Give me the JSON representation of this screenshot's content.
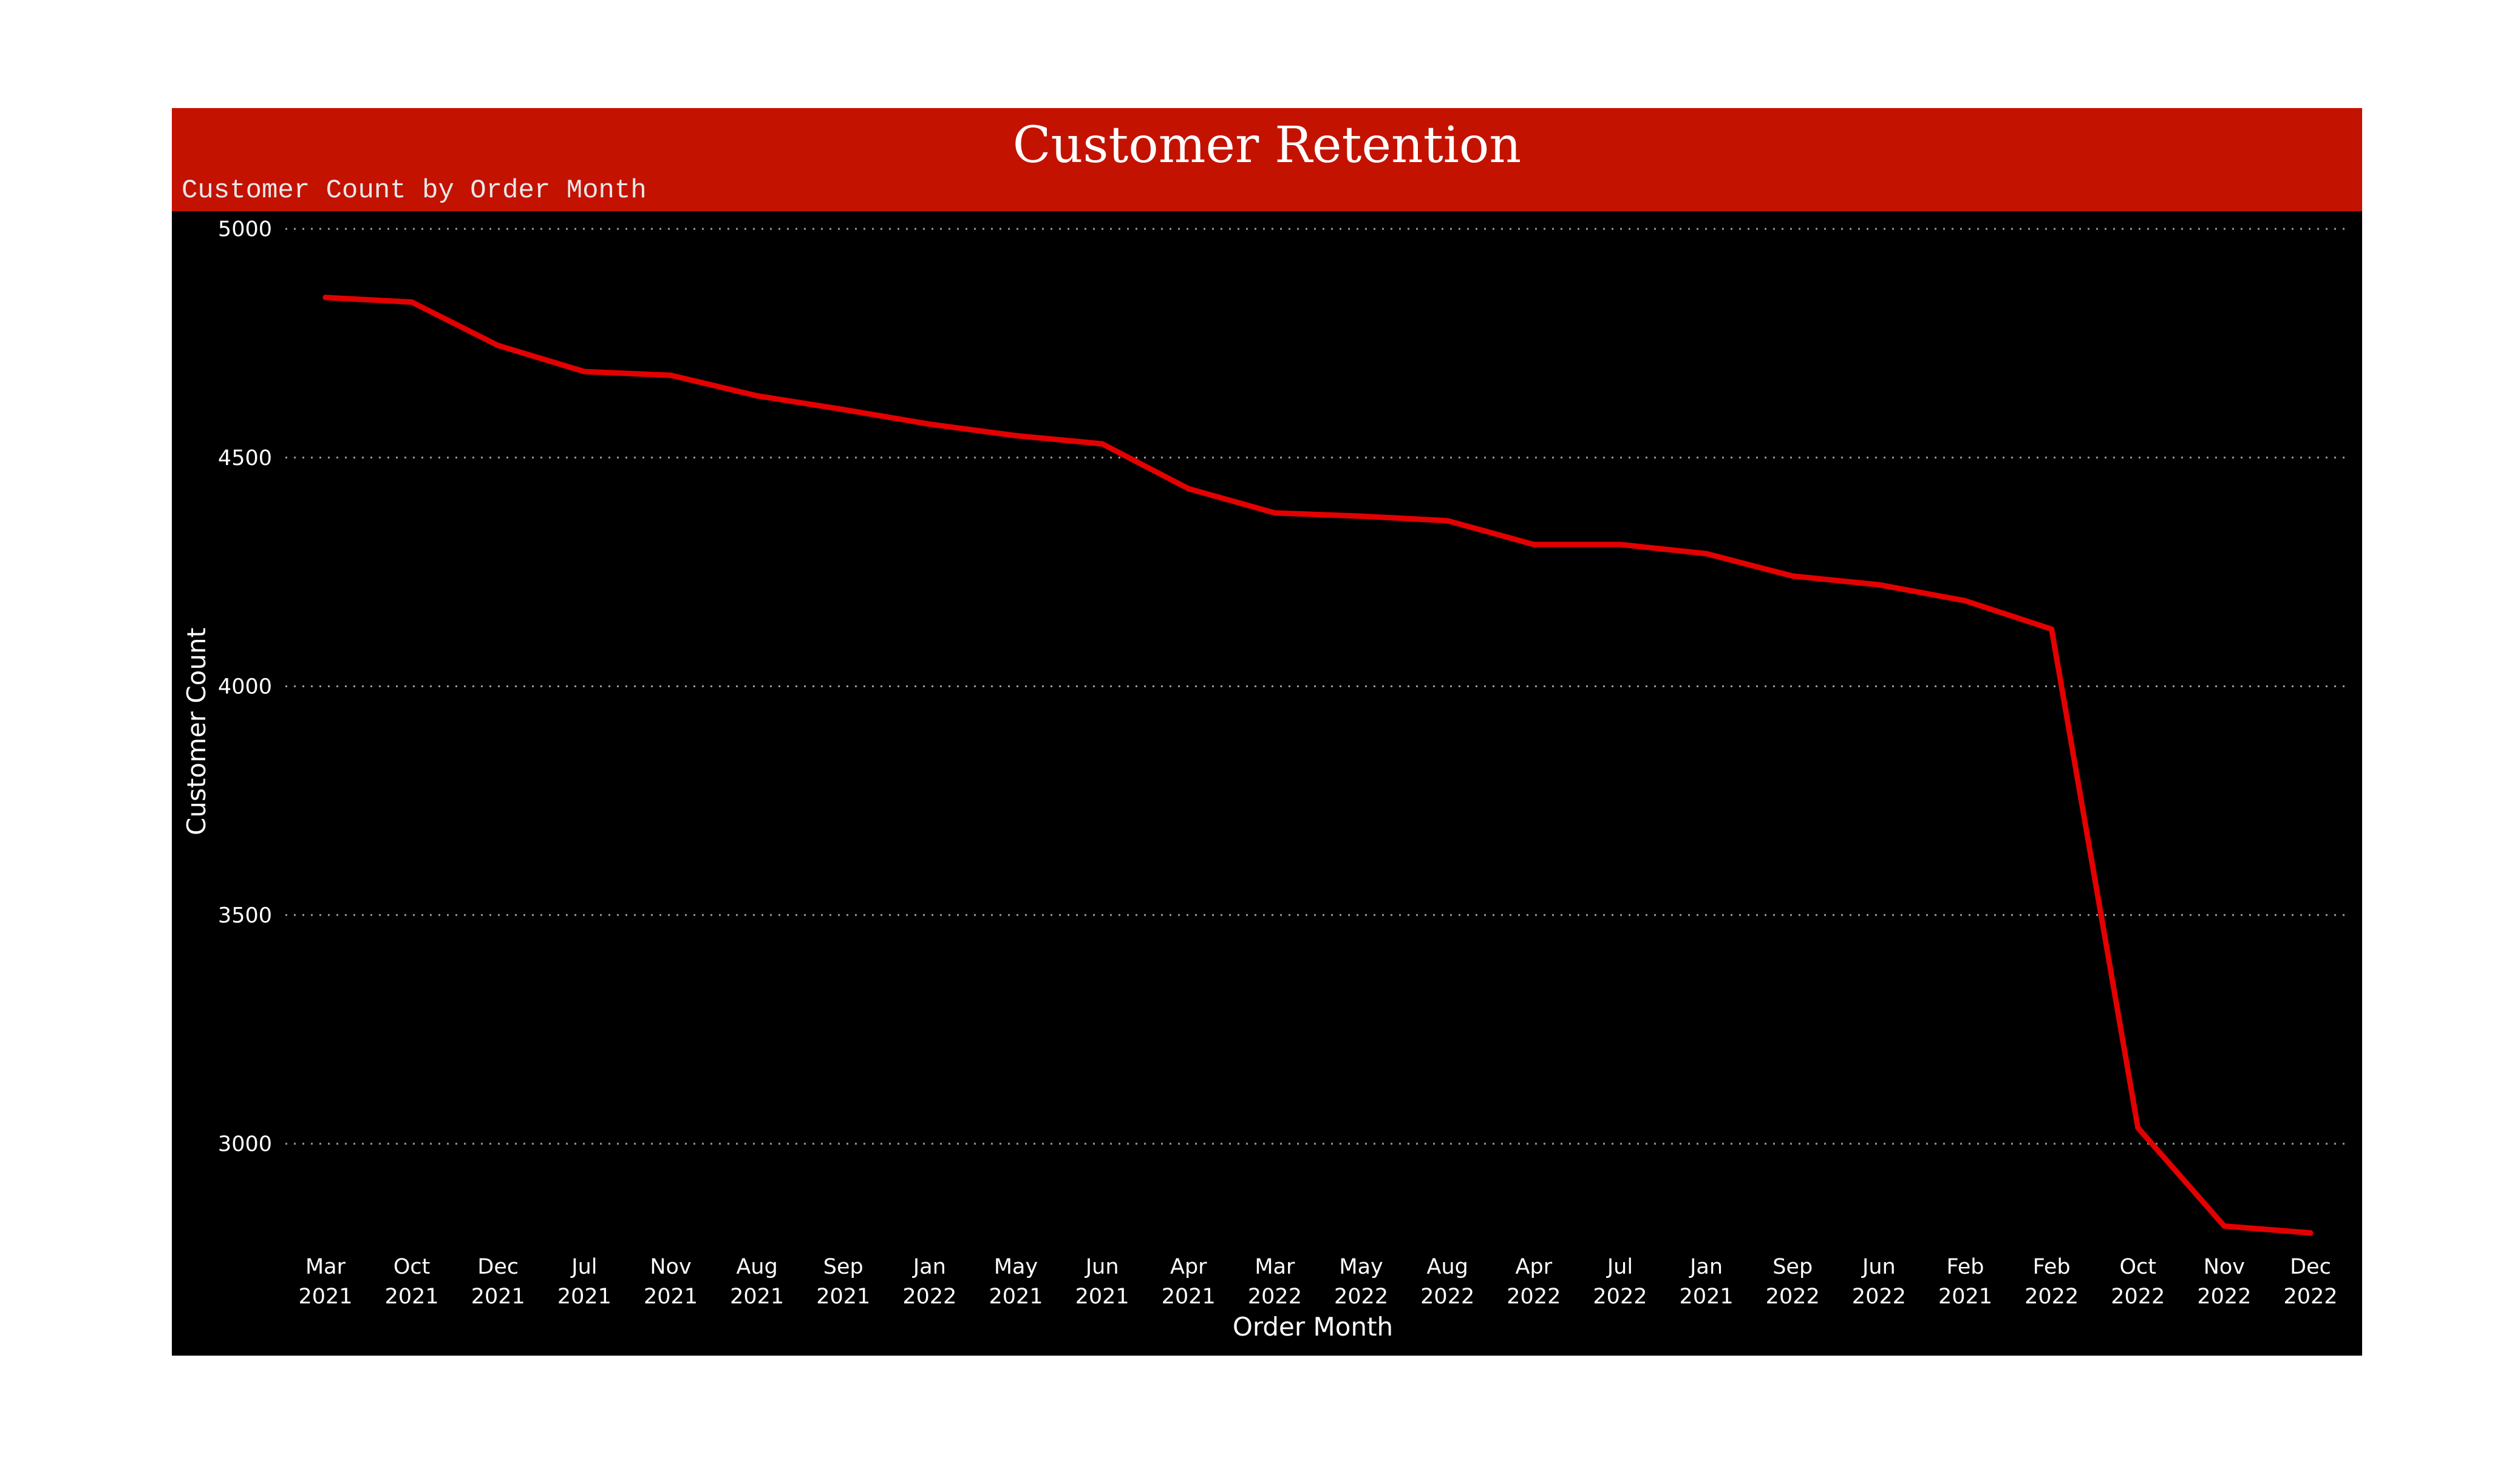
{
  "header": {
    "title": "Customer Retention",
    "subtitle": "Customer Count by Order Month"
  },
  "colors": {
    "header_background": "#c41200",
    "plot_background": "#000000",
    "line": "#e30000",
    "gridline": "#9a9a9a",
    "text": "#ffffff"
  },
  "chart_data": {
    "type": "line",
    "title": "Customer Retention",
    "subtitle": "Customer Count by Order Month",
    "xlabel": "Order Month",
    "ylabel": "Customer Count",
    "ylim": [
      2800,
      5000
    ],
    "yticks": [
      3000,
      3500,
      4000,
      4500,
      5000
    ],
    "grid": "horizontal-dotted",
    "categories": [
      [
        "Mar",
        "2021"
      ],
      [
        "Oct",
        "2021"
      ],
      [
        "Dec",
        "2021"
      ],
      [
        "Jul",
        "2021"
      ],
      [
        "Nov",
        "2021"
      ],
      [
        "Aug",
        "2021"
      ],
      [
        "Sep",
        "2021"
      ],
      [
        "Jan",
        "2022"
      ],
      [
        "May",
        "2021"
      ],
      [
        "Jun",
        "2021"
      ],
      [
        "Apr",
        "2021"
      ],
      [
        "Mar",
        "2022"
      ],
      [
        "May",
        "2022"
      ],
      [
        "Aug",
        "2022"
      ],
      [
        "Apr",
        "2022"
      ],
      [
        "Jul",
        "2022"
      ],
      [
        "Jan",
        "2021"
      ],
      [
        "Sep",
        "2022"
      ],
      [
        "Jun",
        "2022"
      ],
      [
        "Feb",
        "2021"
      ],
      [
        "Feb",
        "2022"
      ],
      [
        "Oct",
        "2022"
      ],
      [
        "Nov",
        "2022"
      ],
      [
        "Dec",
        "2022"
      ]
    ],
    "series": [
      {
        "values": [
          4850,
          4840,
          4745,
          4688,
          4680,
          4635,
          4605,
          4573,
          4548,
          4530,
          4432,
          4379,
          4372,
          4362,
          4310,
          4310,
          4290,
          4241,
          4222,
          4187,
          4125,
          3035,
          2820,
          2805
        ]
      }
    ]
  }
}
